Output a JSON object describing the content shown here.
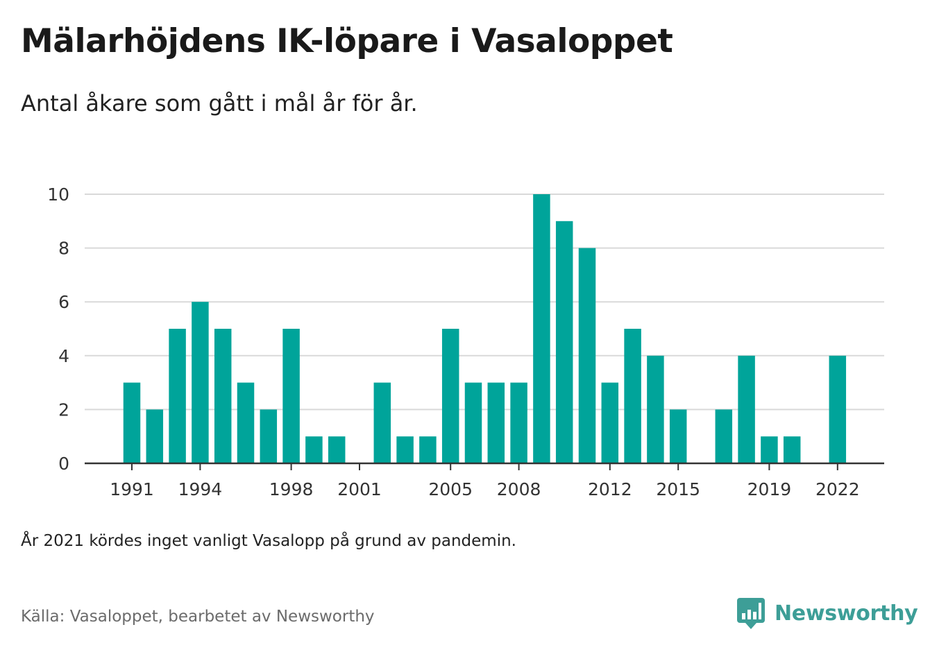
{
  "title": "Mälarhöjdens IK-löpare i Vasaloppet",
  "subtitle": "Antal åkare som gått i mål år för år.",
  "note": "År 2021 kördes inget vanligt Vasalopp på grund av pandemin.",
  "source": "Källa: Vasaloppet, bearbetet av Newsworthy",
  "brand": {
    "name": "Newsworthy",
    "icon": "newsworthy-logo-icon",
    "color": "#3d9e97"
  },
  "colors": {
    "bar": "#00a49a",
    "grid": "#d9d9d9",
    "axis": "#333333",
    "tick_text": "#333333"
  },
  "chart_data": {
    "type": "bar",
    "categories": [
      "1991",
      "1992",
      "1993",
      "1994",
      "1995",
      "1996",
      "1997",
      "1998",
      "1999",
      "2000",
      "2001",
      "2002",
      "2003",
      "2004",
      "2005",
      "2006",
      "2007",
      "2008",
      "2009",
      "2010",
      "2011",
      "2012",
      "2013",
      "2014",
      "2015",
      "2016",
      "2017",
      "2018",
      "2019",
      "2020",
      "2021",
      "2022"
    ],
    "values": [
      3,
      2,
      5,
      6,
      5,
      3,
      2,
      5,
      1,
      1,
      0,
      3,
      1,
      1,
      5,
      3,
      3,
      3,
      10,
      9,
      8,
      3,
      5,
      4,
      2,
      0,
      2,
      4,
      1,
      1,
      0,
      4
    ],
    "x_tick_labels": [
      "1991",
      "1994",
      "1998",
      "2001",
      "2005",
      "2008",
      "2012",
      "2015",
      "2019",
      "2022"
    ],
    "y_ticks": [
      0,
      2,
      4,
      6,
      8,
      10
    ],
    "ylim": [
      0,
      10
    ],
    "grid": true,
    "legend": "none"
  }
}
